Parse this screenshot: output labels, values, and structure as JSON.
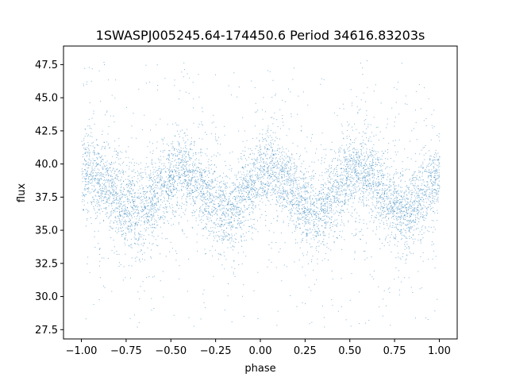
{
  "chart_data": {
    "type": "scatter",
    "title": "1SWASPJ005245.64-174450.6 Period 34616.83203s",
    "xlabel": "phase",
    "ylabel": "flux",
    "xlim": [
      -1.1,
      1.1
    ],
    "ylim": [
      26.8,
      48.9
    ],
    "xticks": [
      -1.0,
      -0.75,
      -0.5,
      -0.25,
      0.0,
      0.25,
      0.5,
      0.75,
      1.0
    ],
    "xtick_labels": [
      "−1.00",
      "−0.75",
      "−0.50",
      "−0.25",
      "0.00",
      "0.25",
      "0.50",
      "0.75",
      "1.00"
    ],
    "yticks": [
      27.5,
      30.0,
      32.5,
      35.0,
      37.5,
      40.0,
      42.5,
      45.0,
      47.5
    ],
    "ytick_labels": [
      "27.5",
      "30.0",
      "32.5",
      "35.0",
      "37.5",
      "40.0",
      "42.5",
      "45.0",
      "47.5"
    ],
    "grid": false,
    "marker_color": "#1f77b4",
    "x_range": [
      -1.0,
      1.0
    ],
    "flux_range": [
      27.7,
      47.9
    ],
    "mean_flux": 38.0,
    "modulation_amplitude": 1.4,
    "cycles_per_unit_phase": 2,
    "peak_phases": [
      -0.45,
      0.05,
      0.55
    ],
    "trough_phases": [
      -0.7,
      -0.2,
      0.3,
      0.8
    ],
    "core_band_halfwidth": 2.6
  }
}
